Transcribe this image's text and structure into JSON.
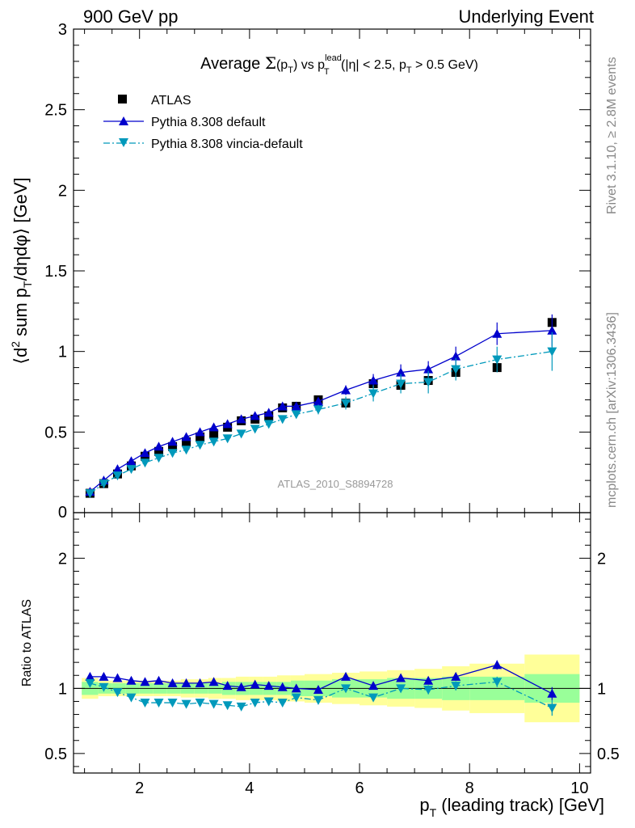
{
  "header": {
    "left": "900 GeV pp",
    "right": "Underlying Event"
  },
  "side_text": {
    "rivet": "Rivet 3.1.10, ≥ 2.8M events",
    "mcplots": "mcplots.cern.ch [arXiv:1306.3436]"
  },
  "watermark": "ATLAS_2010_S8894728",
  "chart_data": {
    "type": "scatter",
    "title": "Average Σ(pT) vs pT^lead (|η| < 2.5, pT > 0.5 GeV)",
    "title_parts": {
      "a": "Average ",
      "sigma": "Σ",
      "b": "(p",
      "b_sub": "T",
      "c": ") vs p",
      "c_sup": "lead",
      "c_sub": "T",
      "d": " (|η| < 2.5, p",
      "d_sub": "T",
      "e": " > 0.5 GeV)"
    },
    "xlabel": "pT (leading track) [GeV]",
    "xlabel_parts": {
      "p": "p",
      "sub": "T",
      "rest": " (leading track) [GeV]"
    },
    "ylabel": "⟨d² sum pT/dηdφ⟩ [GeV]",
    "ylabel_parts": {
      "a": "⟨d",
      "sup": "2",
      "b": " sum p",
      "sub": "T",
      "c": "/dηdφ⟩ [GeV]"
    },
    "ratio_ylabel": "Ratio to ATLAS",
    "xlim": [
      0.8,
      10.2
    ],
    "ylim": [
      0,
      3
    ],
    "ratio_ylim": [
      0.35,
      2.35
    ],
    "x_ticks": [
      2,
      4,
      6,
      8,
      10
    ],
    "x_tick_labels": [
      "2",
      "4",
      "6",
      "8",
      "10"
    ],
    "y_ticks": [
      0.5,
      1,
      1.5,
      2,
      2.5,
      3
    ],
    "y_tick_labels": [
      "0.5",
      "1",
      "1.5",
      "2",
      "2.5",
      "3"
    ],
    "y_zero_label": "0",
    "ratio_ticks": [
      0.5,
      1,
      2
    ],
    "ratio_tick_labels": [
      "0.5",
      "1",
      "2"
    ],
    "x": [
      1.1,
      1.35,
      1.6,
      1.85,
      2.1,
      2.35,
      2.6,
      2.85,
      3.1,
      3.35,
      3.6,
      3.85,
      4.1,
      4.35,
      4.6,
      4.85,
      5.25,
      5.75,
      6.25,
      6.75,
      7.25,
      7.75,
      8.5,
      9.5
    ],
    "series": [
      {
        "name": "ATLAS",
        "color": "#000000",
        "marker": "square",
        "values": [
          0.12,
          0.18,
          0.24,
          0.29,
          0.35,
          0.38,
          0.41,
          0.44,
          0.47,
          0.49,
          0.53,
          0.57,
          0.58,
          0.6,
          0.65,
          0.66,
          0.7,
          0.68,
          0.8,
          0.79,
          0.82,
          0.87,
          0.9,
          1.18
        ],
        "band_stat": [
          0.05,
          0.04,
          0.04,
          0.04,
          0.04,
          0.04,
          0.04,
          0.04,
          0.04,
          0.04,
          0.05,
          0.05,
          0.05,
          0.05,
          0.05,
          0.06,
          0.06,
          0.07,
          0.07,
          0.08,
          0.08,
          0.09,
          0.09,
          0.11
        ],
        "band_total": [
          0.08,
          0.06,
          0.06,
          0.06,
          0.06,
          0.06,
          0.06,
          0.07,
          0.07,
          0.08,
          0.08,
          0.09,
          0.09,
          0.09,
          0.1,
          0.1,
          0.11,
          0.12,
          0.13,
          0.14,
          0.15,
          0.17,
          0.19,
          0.26
        ]
      },
      {
        "name": "Pythia 8.308 default",
        "color": "#0000cc",
        "marker": "triangle-up",
        "line": "solid",
        "values": [
          0.13,
          0.2,
          0.27,
          0.32,
          0.37,
          0.41,
          0.44,
          0.47,
          0.5,
          0.53,
          0.55,
          0.58,
          0.6,
          0.62,
          0.66,
          0.66,
          0.69,
          0.76,
          0.82,
          0.87,
          0.89,
          0.97,
          1.11,
          1.13
        ],
        "ratio": [
          1.09,
          1.09,
          1.08,
          1.06,
          1.05,
          1.06,
          1.04,
          1.04,
          1.04,
          1.05,
          1.02,
          1.01,
          1.03,
          1.02,
          1.01,
          1.0,
          0.99,
          1.09,
          1.02,
          1.08,
          1.06,
          1.09,
          1.18,
          0.96
        ],
        "err": [
          0.01,
          0.01,
          0.01,
          0.01,
          0.01,
          0.01,
          0.01,
          0.01,
          0.01,
          0.01,
          0.01,
          0.01,
          0.01,
          0.01,
          0.01,
          0.01,
          0.01,
          0.015,
          0.02,
          0.025,
          0.025,
          0.03,
          0.035,
          0.05
        ]
      },
      {
        "name": "Pythia 8.308 vincia-default",
        "color": "#0099bb",
        "marker": "triangle-down",
        "line": "dashdot",
        "values": [
          0.12,
          0.18,
          0.23,
          0.27,
          0.31,
          0.34,
          0.37,
          0.39,
          0.42,
          0.44,
          0.46,
          0.49,
          0.52,
          0.55,
          0.58,
          0.61,
          0.64,
          0.68,
          0.74,
          0.8,
          0.81,
          0.89,
          0.95,
          1.0
        ],
        "ratio": [
          1.04,
          1.01,
          0.97,
          0.93,
          0.89,
          0.89,
          0.89,
          0.88,
          0.89,
          0.88,
          0.87,
          0.86,
          0.89,
          0.9,
          0.89,
          0.93,
          0.91,
          1.0,
          0.93,
          1.0,
          0.99,
          1.02,
          1.05,
          0.85
        ],
        "err": [
          0.01,
          0.01,
          0.01,
          0.01,
          0.01,
          0.01,
          0.01,
          0.01,
          0.01,
          0.01,
          0.01,
          0.01,
          0.01,
          0.01,
          0.01,
          0.01,
          0.015,
          0.02,
          0.025,
          0.03,
          0.035,
          0.035,
          0.04,
          0.06
        ]
      }
    ],
    "bins": [
      [
        0.95,
        1.25
      ],
      [
        1.25,
        1.5
      ],
      [
        1.5,
        1.75
      ],
      [
        1.75,
        2.0
      ],
      [
        2.0,
        2.25
      ],
      [
        2.25,
        2.5
      ],
      [
        2.5,
        2.75
      ],
      [
        2.75,
        3.0
      ],
      [
        3.0,
        3.25
      ],
      [
        3.25,
        3.5
      ],
      [
        3.5,
        3.75
      ],
      [
        3.75,
        4.0
      ],
      [
        4.0,
        4.25
      ],
      [
        4.25,
        4.5
      ],
      [
        4.5,
        4.75
      ],
      [
        4.75,
        5.0
      ],
      [
        5.0,
        5.5
      ],
      [
        5.5,
        6.0
      ],
      [
        6.0,
        6.5
      ],
      [
        6.5,
        7.0
      ],
      [
        7.0,
        7.5
      ],
      [
        7.5,
        8.0
      ],
      [
        8.0,
        9.0
      ],
      [
        9.0,
        10.0
      ]
    ],
    "legend_position": "top-left",
    "grid": false
  }
}
